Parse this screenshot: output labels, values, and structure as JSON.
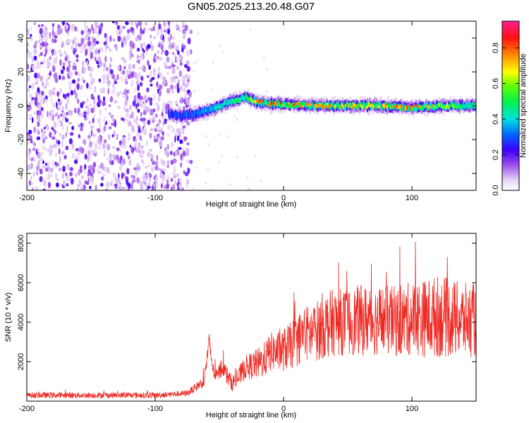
{
  "title": "GN05.2025.213.20.48.G07",
  "chart_data": [
    {
      "type": "heatmap",
      "xlabel": "Height of straight line (km)",
      "ylabel": "Frequency (Hz)",
      "xlim": [
        -200,
        150
      ],
      "ylim": [
        -50,
        50
      ],
      "xticks": [
        "-200",
        "-100",
        "0",
        "100"
      ],
      "xtick_values": [
        -200,
        -100,
        0,
        100
      ],
      "yticks": [
        "-40",
        "-20",
        "0",
        "20",
        "40"
      ],
      "ytick_values": [
        -40,
        -20,
        0,
        20,
        40
      ],
      "colorbar": {
        "label": "Normalized spectral amplitude",
        "range": [
          0,
          0.95
        ],
        "ticks": [
          "0.0",
          "0.2",
          "0.4",
          "0.6",
          "0.8"
        ],
        "tick_values": [
          0,
          0.2,
          0.4,
          0.6,
          0.8
        ]
      },
      "noise_region_x": [
        -200,
        -72
      ],
      "signal_track": {
        "x": [
          -90,
          -80,
          -70,
          -60,
          -50,
          -40,
          -30,
          -20,
          -10,
          0,
          25,
          50,
          75,
          100,
          125,
          150
        ],
        "y": [
          -5,
          -6,
          -5,
          -3,
          0,
          3,
          5,
          2,
          1,
          1,
          0,
          0,
          0,
          -1,
          0,
          0
        ],
        "amplitude": [
          0.3,
          0.3,
          0.35,
          0.4,
          0.45,
          0.5,
          0.55,
          0.9,
          0.9,
          0.85,
          0.8,
          0.75,
          0.8,
          0.85,
          0.7,
          0.5
        ]
      },
      "grid": false
    },
    {
      "type": "line",
      "xlabel": "Height of straight line (km)",
      "ylabel": "SNR (10 * v/v)",
      "xlim": [
        -200,
        150
      ],
      "ylim": [
        0,
        8500
      ],
      "xticks": [
        "-200",
        "-100",
        "0",
        "100"
      ],
      "xtick_values": [
        -200,
        -100,
        0,
        100
      ],
      "yticks": [
        "2000",
        "4000",
        "6000",
        "8000"
      ],
      "ytick_values": [
        2000,
        4000,
        6000,
        8000
      ],
      "color": "#ee2a24",
      "series": [
        {
          "x": [
            -200,
            -150,
            -100,
            -75,
            -62,
            -58,
            -55,
            -52,
            -48,
            -45,
            -40,
            -35,
            -30,
            -25,
            -20,
            -15,
            -10,
            -5,
            0,
            5,
            10,
            15,
            20,
            25,
            30,
            40,
            50,
            60,
            70,
            80,
            90,
            100,
            110,
            120,
            130,
            140,
            150
          ],
          "y": [
            300,
            300,
            300,
            400,
            1000,
            3000,
            1600,
            1200,
            1800,
            1400,
            900,
            1200,
            1700,
            1800,
            1900,
            2100,
            2500,
            2500,
            2600,
            2800,
            3000,
            3400,
            3400,
            3500,
            3800,
            4000,
            4000,
            4100,
            4100,
            4100,
            4000,
            4200,
            4200,
            4300,
            4200,
            4100,
            4100
          ],
          "noise_amplitude": [
            150,
            150,
            150,
            150,
            300,
            500,
            400,
            400,
            500,
            500,
            400,
            500,
            600,
            700,
            800,
            900,
            1000,
            1000,
            1100,
            1200,
            1300,
            1400,
            1500,
            1500,
            1700,
            1700,
            1700,
            1800,
            1800,
            1800,
            1800,
            1900,
            2000,
            2100,
            2000,
            1900,
            1900
          ]
        }
      ],
      "grid": false
    }
  ]
}
